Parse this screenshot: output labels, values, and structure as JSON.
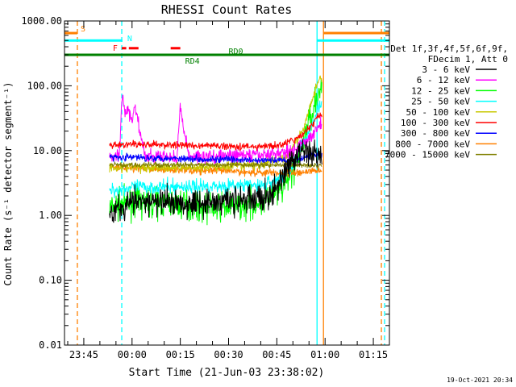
{
  "chart_data": {
    "type": "line",
    "title": "RHESSI Count Rates",
    "ylabel": "Count Rate (s⁻¹ detector segment⁻¹)",
    "xlabel": "Start Time (21-Jun-03 23:38:02)",
    "y_scale": "log",
    "ylim": [
      0.01,
      1000
    ],
    "y_ticks": [
      "0.01",
      "0.10",
      "1.00",
      "10.00",
      "100.00",
      "1000.00"
    ],
    "y_tick_values": [
      0.01,
      0.1,
      1,
      10,
      100,
      1000
    ],
    "x_range_min": [
      -21,
      80
    ],
    "x_ticks": [
      "23:45",
      "00:00",
      "00:15",
      "00:30",
      "00:45",
      "01:00",
      "01:15"
    ],
    "x_tick_values_min": [
      -15,
      0,
      15,
      30,
      45,
      60,
      75
    ],
    "data_window_min": [
      -7,
      59
    ],
    "legend": {
      "header_line1": "Det 1f,3f,4f,5f,6f,9f,",
      "header_line2": "FDecim 1, Att 0",
      "placement": "right"
    },
    "series": [
      {
        "name": "3 - 6 keV",
        "color": "#000000",
        "level": 1.5,
        "noise": 0.12,
        "points": [
          [
            -7,
            1.0
          ],
          [
            -5,
            1.3
          ],
          [
            0,
            1.6
          ],
          [
            10,
            1.6
          ],
          [
            20,
            1.6
          ],
          [
            30,
            1.7
          ],
          [
            40,
            1.8
          ],
          [
            45,
            2.5
          ],
          [
            48,
            5
          ],
          [
            52,
            10
          ],
          [
            55,
            9
          ],
          [
            58,
            8
          ]
        ]
      },
      {
        "name": "6 - 12 keV",
        "color": "#ff00ff",
        "level": 8,
        "noise": 0.06,
        "points": [
          [
            -7,
            8
          ],
          [
            -4,
            8
          ],
          [
            -3,
            80
          ],
          [
            -2,
            35
          ],
          [
            -1,
            40
          ],
          [
            0,
            30
          ],
          [
            1,
            50
          ],
          [
            2,
            25
          ],
          [
            4,
            8
          ],
          [
            14,
            8
          ],
          [
            15,
            50
          ],
          [
            16,
            20
          ],
          [
            18,
            8
          ],
          [
            40,
            8.5
          ],
          [
            50,
            10
          ],
          [
            55,
            15
          ],
          [
            58,
            25
          ]
        ]
      },
      {
        "name": "12 - 25 keV",
        "color": "#00ff00",
        "level": 1.5,
        "noise": 0.12,
        "points": [
          [
            -7,
            1.3
          ],
          [
            0,
            1.6
          ],
          [
            15,
            1.5
          ],
          [
            25,
            1.3
          ],
          [
            35,
            1.4
          ],
          [
            42,
            1.8
          ],
          [
            47,
            2.5
          ],
          [
            52,
            8
          ],
          [
            55,
            30
          ],
          [
            58,
            80
          ]
        ]
      },
      {
        "name": "25 - 50 keV",
        "color": "#00ffff",
        "level": 2.6,
        "noise": 0.06,
        "points": [
          [
            -7,
            2.4
          ],
          [
            0,
            2.7
          ],
          [
            20,
            2.8
          ],
          [
            40,
            2.9
          ],
          [
            45,
            3.5
          ],
          [
            50,
            6
          ],
          [
            55,
            20
          ],
          [
            58,
            50
          ]
        ]
      },
      {
        "name": "50 - 100 keV",
        "color": "#c8c800",
        "level": 5.5,
        "noise": 0.04,
        "points": [
          [
            -7,
            5.5
          ],
          [
            20,
            5.5
          ],
          [
            40,
            6
          ],
          [
            48,
            8
          ],
          [
            53,
            20
          ],
          [
            58,
            130
          ]
        ]
      },
      {
        "name": "100 - 300 keV",
        "color": "#ff0000",
        "level": 12,
        "noise": 0.03,
        "points": [
          [
            -7,
            12
          ],
          [
            0,
            12.5
          ],
          [
            20,
            12
          ],
          [
            40,
            11.5
          ],
          [
            46,
            12
          ],
          [
            52,
            16
          ],
          [
            56,
            25
          ],
          [
            58,
            35
          ]
        ]
      },
      {
        "name": "300 - 800 keV",
        "color": "#0000ff",
        "level": 8,
        "noise": 0.03,
        "points": [
          [
            -7,
            8
          ],
          [
            20,
            7.5
          ],
          [
            40,
            7
          ],
          [
            50,
            7.2
          ],
          [
            58,
            9
          ]
        ]
      },
      {
        "name": "800 - 7000 keV",
        "color": "#ff8000",
        "level": 5,
        "noise": 0.035,
        "points": [
          [
            -7,
            5.5
          ],
          [
            20,
            5
          ],
          [
            40,
            4.6
          ],
          [
            50,
            4.5
          ],
          [
            58,
            5
          ]
        ]
      },
      {
        "name": "7000 - 15000 keV",
        "color": "#808000",
        "level": 6,
        "noise": 0.02,
        "points": [
          [
            -7,
            6
          ],
          [
            58,
            6
          ]
        ]
      }
    ],
    "annotations": [
      {
        "label": "S",
        "color": "#ff8000",
        "y_value": 650,
        "x_range_min": [
          -21,
          -17
        ]
      },
      {
        "label": "N",
        "color": "#00ffff",
        "y_value": 500,
        "x_range_min": [
          -21,
          -3
        ]
      },
      {
        "label": "F",
        "color": "#ff0000",
        "y_value": 380,
        "x_range_min": [
          -3,
          1.5
        ]
      },
      {
        "label": "RD0",
        "color": "#008000",
        "y_value": 300,
        "x_range_min": [
          -21,
          80
        ]
      },
      {
        "label": "RD4",
        "color": "#008000",
        "y_value": 300,
        "x_range_min": [
          -21,
          80
        ]
      }
    ],
    "orange_bar_right": {
      "color": "#ff8000",
      "y_value": 650,
      "x_range_min": [
        59.5,
        80
      ]
    },
    "cyan_bar_right": {
      "color": "#00ffff",
      "y_value": 500,
      "x_range_min": [
        57.5,
        80
      ]
    },
    "red_segments_min": [
      [
        -3.2,
        -1.8
      ],
      [
        -1,
        2
      ],
      [
        12,
        15
      ]
    ],
    "vertical_markers": [
      {
        "color": "#ff8000",
        "x_min": -17,
        "style": "dashed"
      },
      {
        "color": "#00ffff",
        "x_min": -3.2,
        "style": "dashed"
      },
      {
        "color": "#00ffff",
        "x_min": 57.5,
        "style": "solid"
      },
      {
        "color": "#ff8000",
        "x_min": 59.5,
        "style": "solid"
      },
      {
        "color": "#ff8000",
        "x_min": 77.5,
        "style": "dashed"
      },
      {
        "color": "#00ffff",
        "x_min": 78.5,
        "style": "dashed"
      }
    ],
    "grid": false
  },
  "footer": {
    "timestamp": "19-Oct-2021 20:34"
  }
}
